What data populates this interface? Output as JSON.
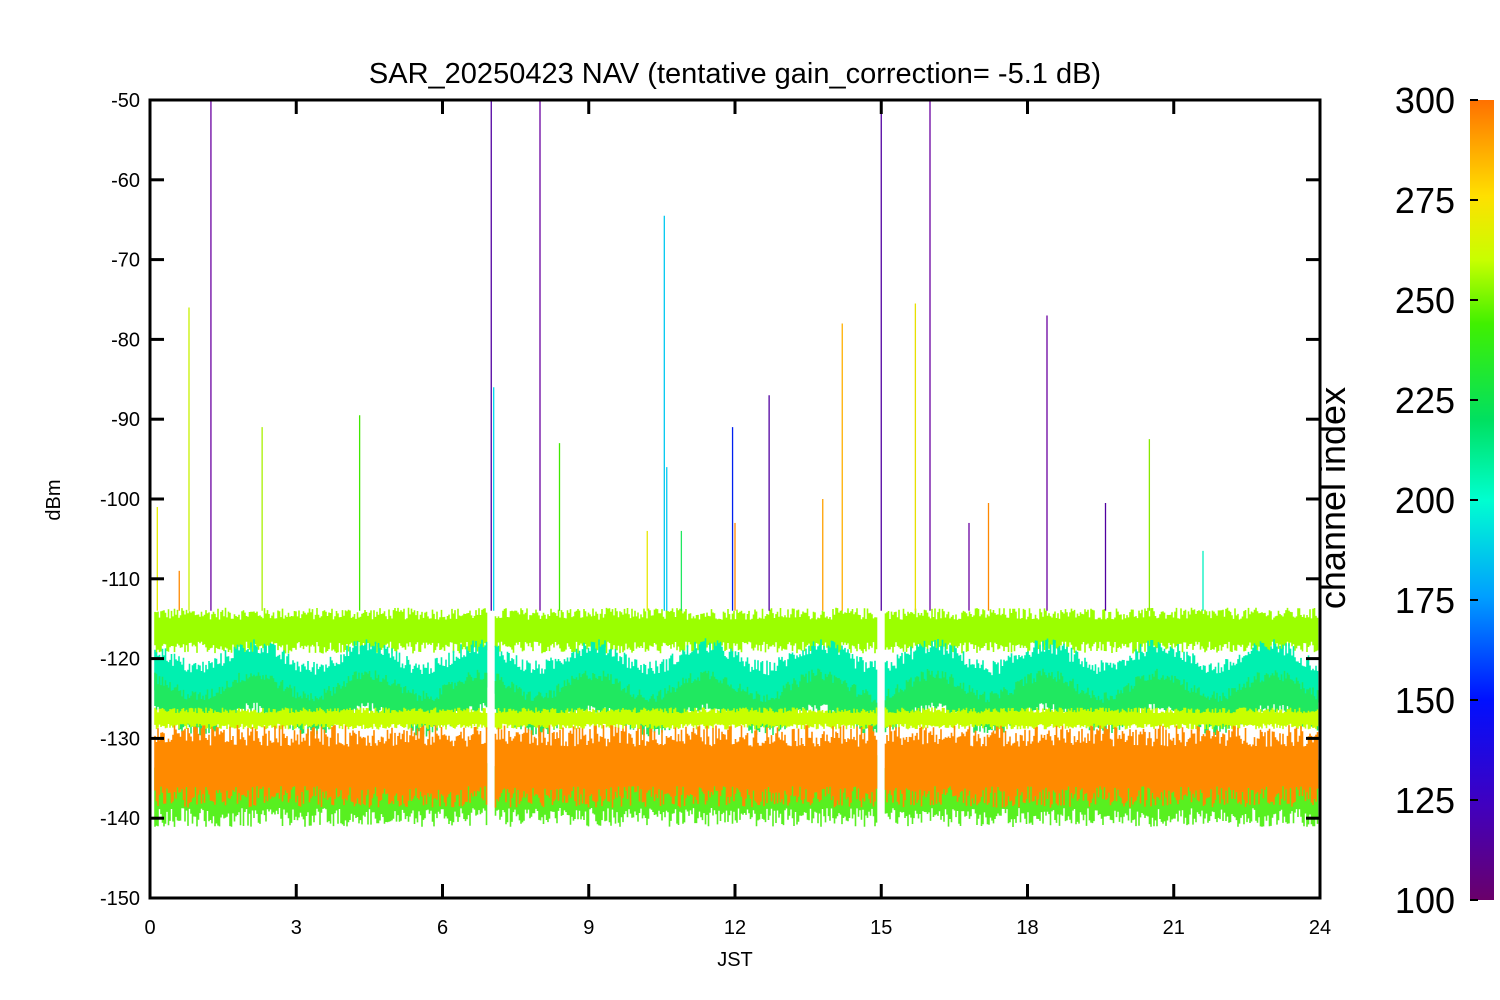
{
  "chart_data": {
    "type": "line",
    "title": "SAR_20250423 NAV (tentative gain_correction= -5.1 dB)",
    "xlabel": "JST",
    "ylabel": "dBm",
    "xlim": [
      0,
      24
    ],
    "ylim": [
      -150,
      -50
    ],
    "x_ticks": [
      0,
      3,
      6,
      9,
      12,
      15,
      18,
      21,
      24
    ],
    "y_ticks": [
      -50,
      -60,
      -70,
      -80,
      -90,
      -100,
      -110,
      -120,
      -130,
      -140,
      -150
    ],
    "grid": false,
    "colorbar": {
      "label": "channel index",
      "range": [
        100,
        300
      ],
      "ticks": [
        300,
        275,
        250,
        225,
        200,
        175,
        150,
        125,
        100
      ],
      "colormap": "rainbow"
    },
    "data_gaps_hours": [
      7.0,
      15.0
    ],
    "bands": [
      {
        "channel": 260,
        "color": "#9bff00",
        "center_dbm": -116.5,
        "halfwidth_db": 2.5
      },
      {
        "channel": 190,
        "color": "#00f0b0",
        "center_dbm": -122.5,
        "halfwidth_db": 3.2
      },
      {
        "channel": 225,
        "color": "#20e860",
        "center_dbm": -125.5,
        "halfwidth_db": 2.5
      },
      {
        "channel": 250,
        "color": "#c8ff00",
        "center_dbm": -127.5,
        "halfwidth_db": 1.2
      },
      {
        "channel": 245,
        "color": "#58f020",
        "center_dbm": -136.5,
        "halfwidth_db": 4.0
      },
      {
        "channel": 290,
        "color": "#ff8a00",
        "center_dbm": -133.5,
        "halfwidth_db": 4.5
      }
    ],
    "spikes": [
      {
        "jst": 0.15,
        "dbm": -101,
        "color": "#e8f000"
      },
      {
        "jst": 0.6,
        "dbm": -109,
        "color": "#ff8800"
      },
      {
        "jst": 0.8,
        "dbm": -76,
        "color": "#c8f000"
      },
      {
        "jst": 1.25,
        "dbm": -50,
        "color": "#6a00a0"
      },
      {
        "jst": 2.3,
        "dbm": -91,
        "color": "#a8f000"
      },
      {
        "jst": 4.3,
        "dbm": -89.5,
        "color": "#40e800"
      },
      {
        "jst": 7.0,
        "dbm": -50,
        "color": "#5000a0"
      },
      {
        "jst": 7.05,
        "dbm": -86,
        "color": "#00d8f0"
      },
      {
        "jst": 8.0,
        "dbm": -50,
        "color": "#6a00a0"
      },
      {
        "jst": 8.4,
        "dbm": -93,
        "color": "#40e800"
      },
      {
        "jst": 10.2,
        "dbm": -104,
        "color": "#e8e800"
      },
      {
        "jst": 10.55,
        "dbm": -64.5,
        "color": "#00c8f0"
      },
      {
        "jst": 10.6,
        "dbm": -96,
        "color": "#00c8f0"
      },
      {
        "jst": 10.9,
        "dbm": -104,
        "color": "#20e860"
      },
      {
        "jst": 11.95,
        "dbm": -91,
        "color": "#0020f0"
      },
      {
        "jst": 12.0,
        "dbm": -103,
        "color": "#ff8800"
      },
      {
        "jst": 12.7,
        "dbm": -87,
        "color": "#5000a0"
      },
      {
        "jst": 13.8,
        "dbm": -100,
        "color": "#ffa000"
      },
      {
        "jst": 14.2,
        "dbm": -78,
        "color": "#ffb000"
      },
      {
        "jst": 15.0,
        "dbm": -50,
        "color": "#5000a0"
      },
      {
        "jst": 15.7,
        "dbm": -75.5,
        "color": "#e8e000"
      },
      {
        "jst": 16.0,
        "dbm": -50,
        "color": "#6a00a0"
      },
      {
        "jst": 16.8,
        "dbm": -103,
        "color": "#6a00a0"
      },
      {
        "jst": 17.2,
        "dbm": -100.5,
        "color": "#ff8800"
      },
      {
        "jst": 18.4,
        "dbm": -77,
        "color": "#6a00a0"
      },
      {
        "jst": 19.6,
        "dbm": -100.5,
        "color": "#5000a0"
      },
      {
        "jst": 20.5,
        "dbm": -92.5,
        "color": "#88e800"
      },
      {
        "jst": 21.6,
        "dbm": -106.5,
        "color": "#00f0c0"
      }
    ]
  }
}
